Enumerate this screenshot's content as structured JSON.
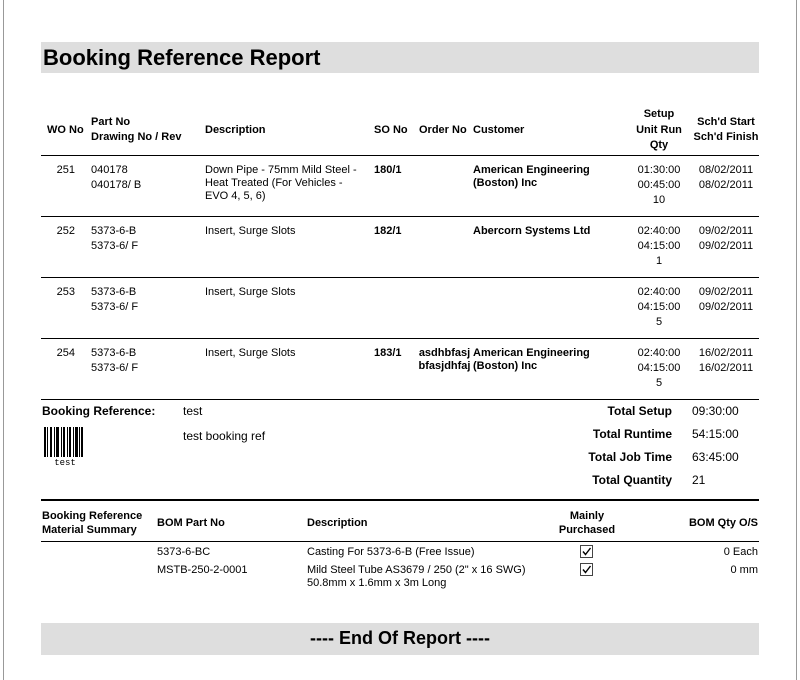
{
  "title": "Booking Reference Report",
  "jobs": {
    "headers": {
      "wo_no": "WO No",
      "part_no": "Part No",
      "drawing_no": "Drawing No / Rev",
      "description": "Description",
      "so_no": "SO No",
      "order_no": "Order No",
      "customer": "Customer",
      "setup": "Setup",
      "unit_run": "Unit Run",
      "qty": "Qty",
      "start": "Sch'd Start",
      "finish": "Sch'd Finish"
    },
    "rows": [
      {
        "wo_no": 251,
        "part_no": "040178",
        "drawing_no": "040178/ B",
        "description": "Down Pipe - 75mm Mild Steel - Heat Treated (For Vehicles - EVO 4, 5, 6)",
        "so_no": "180/1",
        "customer": "American Engineering (Boston) Inc",
        "setup": "01:30:00",
        "unit_run": "00:45:00",
        "qty": 10,
        "start": "08/02/2011",
        "finish": "08/02/2011"
      },
      {
        "wo_no": 252,
        "part_no": "5373-6-B",
        "drawing_no": "5373-6/ F",
        "description": "Insert, Surge Slots",
        "so_no": "182/1",
        "customer": "Abercorn Systems Ltd",
        "setup": "02:40:00",
        "unit_run": "04:15:00",
        "qty": 1,
        "start": "09/02/2011",
        "finish": "09/02/2011"
      },
      {
        "wo_no": 253,
        "part_no": "5373-6-B",
        "drawing_no": "5373-6/ F",
        "description": "Insert, Surge Slots",
        "setup": "02:40:00",
        "unit_run": "04:15:00",
        "qty": 5,
        "start": "09/02/2011",
        "finish": "09/02/2011"
      },
      {
        "wo_no": 254,
        "part_no": "5373-6-B",
        "drawing_no": "5373-6/ F",
        "description": "Insert, Surge Slots",
        "so_no": "183/1",
        "order_no": "asdhbfasjbfasjdhfaj",
        "customer": "American Engineering (Boston) Inc",
        "setup": "02:40:00",
        "unit_run": "04:15:00",
        "qty": 5,
        "start": "16/02/2011",
        "finish": "16/02/2011"
      }
    ]
  },
  "booking": {
    "label": "Booking Reference:",
    "value": "test",
    "barcode_text": "test",
    "description": "test booking ref"
  },
  "totals": [
    {
      "label": "Total Setup",
      "value": "09:30:00"
    },
    {
      "label": "Total Runtime",
      "value": "54:15:00"
    },
    {
      "label": "Total Job Time",
      "value": "63:45:00"
    },
    {
      "label": "Total Quantity",
      "value": 21
    }
  ],
  "materials": {
    "headers": {
      "summary_line1": "Booking Reference",
      "summary_line2": "Material Summary",
      "bom_part_no": "BOM Part No",
      "description": "Description",
      "purchased_line1": "Mainly",
      "purchased_line2": "Purchased",
      "qty": "BOM Qty O/S"
    },
    "rows": [
      {
        "bom_part_no": "5373-6-BC",
        "description": "Casting For 5373-6-B (Free Issue)",
        "mainly_purchased": true,
        "qty": "0 Each"
      },
      {
        "bom_part_no": "MSTB-250-2-0001",
        "description": "Mild Steel Tube AS3679 / 250  (2\" x 16 SWG)\n50.8mm x 1.6mm x 3m Long",
        "mainly_purchased": true,
        "qty": "0 mm"
      }
    ]
  },
  "footer": "---- End Of Report ----"
}
